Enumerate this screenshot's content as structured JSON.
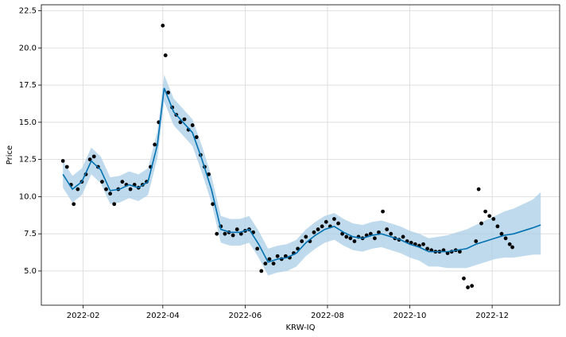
{
  "chart_data": {
    "type": "forecast",
    "xlabel": "KRW-IQ",
    "ylabel": "Price",
    "xlim": [
      "2022-01-01",
      "2023-01-20"
    ],
    "ylim": [
      2.7,
      22.9
    ],
    "yticks": [
      {
        "value": 5,
        "label": "5.0"
      },
      7.5,
      {
        "value": 10,
        "label": "10.0"
      },
      12.5,
      {
        "value": 15,
        "label": "15.0"
      },
      17.5,
      {
        "value": 20,
        "label": "20.0"
      },
      22.5
    ],
    "xticks": [
      {
        "value": "2022-02-01",
        "label": "2022-02"
      },
      {
        "value": "2022-04-01",
        "label": "2022-04"
      },
      {
        "value": "2022-06-01",
        "label": "2022-06"
      },
      {
        "value": "2022-08-01",
        "label": "2022-08"
      },
      {
        "value": "2022-10-01",
        "label": "2022-10"
      },
      {
        "value": "2022-12-01",
        "label": "2022-12"
      }
    ],
    "grid": true,
    "observed": {
      "color": "#000000",
      "x": [
        "2022-01-17",
        "2022-01-20",
        "2022-01-23",
        "2022-01-25",
        "2022-01-28",
        "2022-01-31",
        "2022-02-03",
        "2022-02-06",
        "2022-02-09",
        "2022-02-12",
        "2022-02-15",
        "2022-02-18",
        "2022-02-21",
        "2022-02-24",
        "2022-02-27",
        "2022-03-02",
        "2022-03-05",
        "2022-03-08",
        "2022-03-11",
        "2022-03-14",
        "2022-03-17",
        "2022-03-20",
        "2022-03-23",
        "2022-03-26",
        "2022-03-29",
        "2022-04-01",
        "2022-04-03",
        "2022-04-05",
        "2022-04-08",
        "2022-04-11",
        "2022-04-14",
        "2022-04-17",
        "2022-04-20",
        "2022-04-23",
        "2022-04-26",
        "2022-04-29",
        "2022-05-02",
        "2022-05-05",
        "2022-05-08",
        "2022-05-11",
        "2022-05-14",
        "2022-05-17",
        "2022-05-20",
        "2022-05-23",
        "2022-05-26",
        "2022-05-29",
        "2022-06-01",
        "2022-06-04",
        "2022-06-07",
        "2022-06-10",
        "2022-06-13",
        "2022-06-16",
        "2022-06-19",
        "2022-06-22",
        "2022-06-25",
        "2022-06-28",
        "2022-07-01",
        "2022-07-04",
        "2022-07-07",
        "2022-07-10",
        "2022-07-13",
        "2022-07-16",
        "2022-07-19",
        "2022-07-22",
        "2022-07-25",
        "2022-07-28",
        "2022-07-31",
        "2022-08-03",
        "2022-08-06",
        "2022-08-09",
        "2022-08-12",
        "2022-08-15",
        "2022-08-18",
        "2022-08-21",
        "2022-08-24",
        "2022-08-27",
        "2022-08-30",
        "2022-09-02",
        "2022-09-05",
        "2022-09-08",
        "2022-09-11",
        "2022-09-14",
        "2022-09-17",
        "2022-09-20",
        "2022-09-23",
        "2022-09-26",
        "2022-09-29",
        "2022-10-02",
        "2022-10-05",
        "2022-10-08",
        "2022-10-11",
        "2022-10-14",
        "2022-10-17",
        "2022-10-20",
        "2022-10-23",
        "2022-10-26",
        "2022-10-29",
        "2022-11-01",
        "2022-11-04",
        "2022-11-07",
        "2022-11-10",
        "2022-11-13",
        "2022-11-16",
        "2022-11-19",
        "2022-11-21",
        "2022-11-23",
        "2022-11-26",
        "2022-11-29",
        "2022-12-02",
        "2022-12-05",
        "2022-12-08",
        "2022-12-11",
        "2022-12-14",
        "2022-12-16"
      ],
      "values": [
        12.4,
        12.0,
        10.8,
        9.5,
        10.5,
        11.0,
        11.5,
        12.5,
        12.7,
        12.0,
        11.0,
        10.5,
        10.2,
        9.5,
        10.5,
        11.0,
        10.8,
        10.5,
        10.8,
        10.6,
        10.8,
        11.0,
        12.0,
        13.5,
        15.0,
        21.5,
        19.5,
        17.0,
        16.0,
        15.5,
        15.0,
        15.2,
        14.5,
        14.8,
        14.0,
        12.8,
        12.0,
        11.5,
        9.5,
        7.5,
        8.0,
        7.5,
        7.6,
        7.4,
        7.8,
        7.5,
        7.7,
        7.8,
        7.6,
        6.5,
        5.0,
        5.5,
        5.8,
        5.5,
        6.0,
        5.8,
        6.0,
        5.9,
        6.2,
        6.5,
        7.0,
        7.3,
        7.0,
        7.6,
        7.8,
        8.0,
        8.3,
        8.0,
        8.5,
        8.2,
        7.5,
        7.3,
        7.2,
        7.0,
        7.3,
        7.2,
        7.4,
        7.5,
        7.2,
        7.6,
        9.0,
        7.8,
        7.5,
        7.2,
        7.1,
        7.3,
        7.0,
        6.9,
        6.8,
        6.7,
        6.8,
        6.5,
        6.4,
        6.3,
        6.3,
        6.4,
        6.2,
        6.3,
        6.4,
        6.3,
        4.5,
        3.9,
        4.0,
        7.0,
        10.5,
        8.2,
        9.0,
        8.7,
        8.5,
        8.0,
        7.5,
        7.2,
        6.8,
        6.6
      ]
    },
    "forecast": {
      "color": "#0072b2",
      "band_color": "#a9cde6",
      "x": [
        "2022-01-17",
        "2022-01-24",
        "2022-01-31",
        "2022-02-07",
        "2022-02-14",
        "2022-02-21",
        "2022-02-28",
        "2022-03-07",
        "2022-03-14",
        "2022-03-21",
        "2022-03-28",
        "2022-04-02",
        "2022-04-09",
        "2022-04-16",
        "2022-04-23",
        "2022-04-30",
        "2022-05-07",
        "2022-05-14",
        "2022-05-21",
        "2022-05-28",
        "2022-06-04",
        "2022-06-11",
        "2022-06-18",
        "2022-06-25",
        "2022-07-02",
        "2022-07-09",
        "2022-07-16",
        "2022-07-23",
        "2022-07-30",
        "2022-08-06",
        "2022-08-13",
        "2022-08-20",
        "2022-08-27",
        "2022-09-03",
        "2022-09-10",
        "2022-09-17",
        "2022-09-24",
        "2022-10-01",
        "2022-10-08",
        "2022-10-15",
        "2022-10-22",
        "2022-10-29",
        "2022-11-05",
        "2022-11-12",
        "2022-11-19",
        "2022-11-26",
        "2022-12-03",
        "2022-12-10",
        "2022-12-17",
        "2022-12-24",
        "2022-12-31",
        "2023-01-06"
      ],
      "values": [
        11.5,
        10.5,
        11.0,
        12.4,
        11.8,
        10.4,
        10.5,
        10.8,
        10.6,
        11.0,
        13.5,
        17.3,
        15.7,
        15.0,
        14.3,
        12.5,
        10.5,
        7.8,
        7.6,
        7.6,
        7.8,
        6.8,
        5.6,
        5.8,
        5.9,
        6.2,
        6.9,
        7.4,
        7.8,
        8.0,
        7.6,
        7.3,
        7.2,
        7.4,
        7.5,
        7.3,
        7.1,
        6.8,
        6.6,
        6.3,
        6.3,
        6.3,
        6.4,
        6.5,
        6.8,
        7.0,
        7.2,
        7.4,
        7.5,
        7.7,
        7.9,
        8.1
      ],
      "lower": [
        10.6,
        9.6,
        10.1,
        11.5,
        10.9,
        9.5,
        9.6,
        9.9,
        9.7,
        10.1,
        12.6,
        16.4,
        14.8,
        14.1,
        13.4,
        11.6,
        9.6,
        6.9,
        6.7,
        6.7,
        6.9,
        5.9,
        4.7,
        4.9,
        5.0,
        5.3,
        6.0,
        6.5,
        6.9,
        7.1,
        6.7,
        6.4,
        6.3,
        6.5,
        6.6,
        6.4,
        6.2,
        5.9,
        5.7,
        5.3,
        5.3,
        5.2,
        5.2,
        5.2,
        5.4,
        5.6,
        5.8,
        5.9,
        5.9,
        6.0,
        6.1,
        6.1
      ],
      "upper": [
        12.4,
        11.4,
        11.9,
        13.3,
        12.7,
        11.3,
        11.4,
        11.7,
        11.5,
        11.9,
        14.4,
        18.2,
        16.6,
        15.9,
        15.2,
        13.4,
        11.4,
        8.7,
        8.5,
        8.5,
        8.7,
        7.7,
        6.5,
        6.7,
        6.8,
        7.1,
        7.8,
        8.3,
        8.7,
        8.9,
        8.5,
        8.2,
        8.1,
        8.3,
        8.4,
        8.2,
        8.0,
        7.7,
        7.5,
        7.2,
        7.3,
        7.4,
        7.6,
        7.8,
        8.1,
        8.4,
        8.7,
        9.0,
        9.2,
        9.5,
        9.8,
        10.3
      ]
    }
  }
}
